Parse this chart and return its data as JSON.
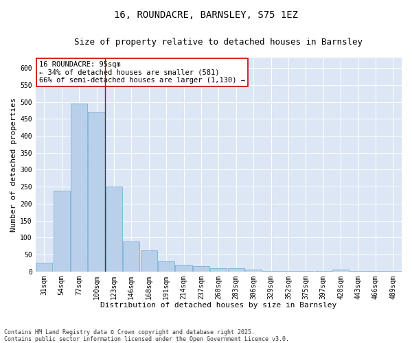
{
  "title": "16, ROUNDACRE, BARNSLEY, S75 1EZ",
  "subtitle": "Size of property relative to detached houses in Barnsley",
  "xlabel": "Distribution of detached houses by size in Barnsley",
  "ylabel": "Number of detached properties",
  "categories": [
    "31sqm",
    "54sqm",
    "77sqm",
    "100sqm",
    "123sqm",
    "146sqm",
    "168sqm",
    "191sqm",
    "214sqm",
    "237sqm",
    "260sqm",
    "283sqm",
    "306sqm",
    "329sqm",
    "352sqm",
    "375sqm",
    "397sqm",
    "420sqm",
    "443sqm",
    "466sqm",
    "489sqm"
  ],
  "values": [
    25,
    238,
    495,
    472,
    250,
    88,
    63,
    30,
    20,
    15,
    10,
    10,
    6,
    2,
    2,
    2,
    2,
    5,
    1,
    1,
    2
  ],
  "bar_color": "#b8d0ea",
  "bar_edge_color": "#6aaad4",
  "vline_color": "#cc0000",
  "vline_index": 3,
  "ylim": [
    0,
    630
  ],
  "yticks": [
    0,
    50,
    100,
    150,
    200,
    250,
    300,
    350,
    400,
    450,
    500,
    550,
    600
  ],
  "plot_bg_color": "#dce6f5",
  "fig_bg_color": "#ffffff",
  "annotation_text": "16 ROUNDACRE: 95sqm\n← 34% of detached houses are smaller (581)\n66% of semi-detached houses are larger (1,130) →",
  "annotation_box_facecolor": "#ffffff",
  "annotation_box_edgecolor": "#cc0000",
  "footer": "Contains HM Land Registry data © Crown copyright and database right 2025.\nContains public sector information licensed under the Open Government Licence v3.0.",
  "title_fontsize": 10,
  "subtitle_fontsize": 9,
  "axis_label_fontsize": 8,
  "tick_fontsize": 7,
  "annotation_fontsize": 7.5,
  "footer_fontsize": 6
}
